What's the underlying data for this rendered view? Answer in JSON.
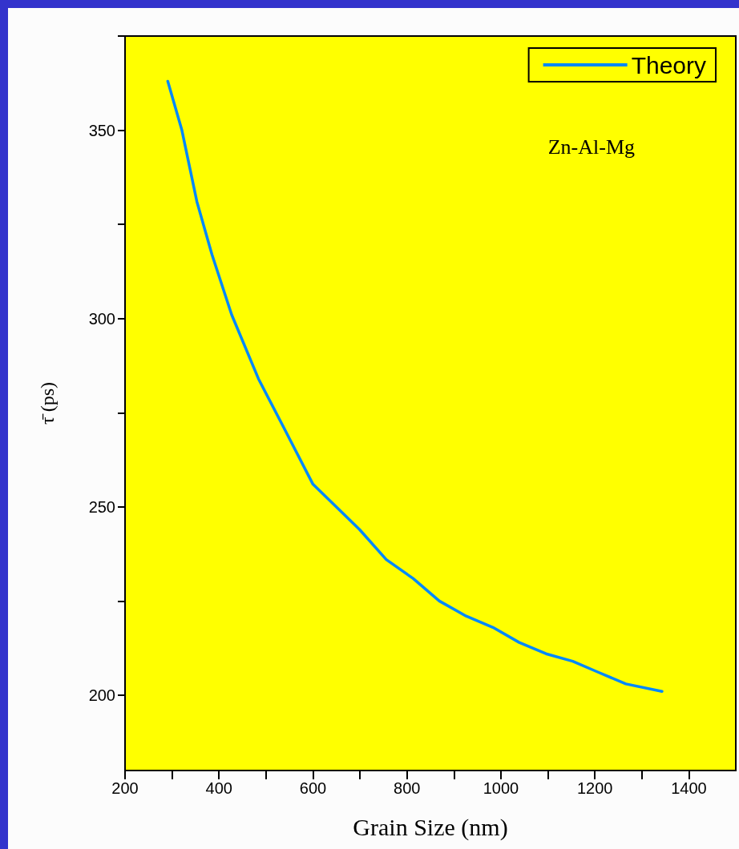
{
  "chart_data": {
    "type": "line",
    "xlabel": "Grain Size (nm)",
    "ylabel": "τ̄ (ps)",
    "annotations": [
      "Zn-Al-Mg"
    ],
    "xlim": [
      200,
      1500
    ],
    "ylim": [
      180,
      375
    ],
    "xticks": [
      200,
      {
        "value": 300,
        "label": null
      },
      400,
      {
        "value": 500,
        "label": null
      },
      600,
      {
        "value": 700,
        "label": null
      },
      800,
      {
        "value": 900,
        "label": null
      },
      1000,
      {
        "value": 1100,
        "label": null
      },
      1200,
      {
        "value": 1300,
        "label": null
      },
      1400
    ],
    "yticks": [
      200,
      {
        "value": 225,
        "label": null
      },
      250,
      {
        "value": 275,
        "label": null
      },
      300,
      {
        "value": 325,
        "label": null
      },
      350,
      {
        "value": 375,
        "label": null
      }
    ],
    "series": [
      {
        "name": "Theory",
        "color": "#0088ff",
        "x": [
          291,
          321,
          353,
          385,
          427,
          484,
          538,
          600,
          699,
          756,
          813,
          869,
          926,
          983,
          1039,
          1096,
          1153,
          1209,
          1266,
          1343
        ],
        "values": [
          363,
          350,
          331,
          317,
          301,
          284,
          271,
          256,
          244,
          236,
          231,
          225,
          221,
          218,
          214,
          211,
          209,
          206,
          203,
          201
        ]
      }
    ],
    "legend": "top right",
    "grid": false,
    "marker": "none",
    "line_style": "solid"
  }
}
